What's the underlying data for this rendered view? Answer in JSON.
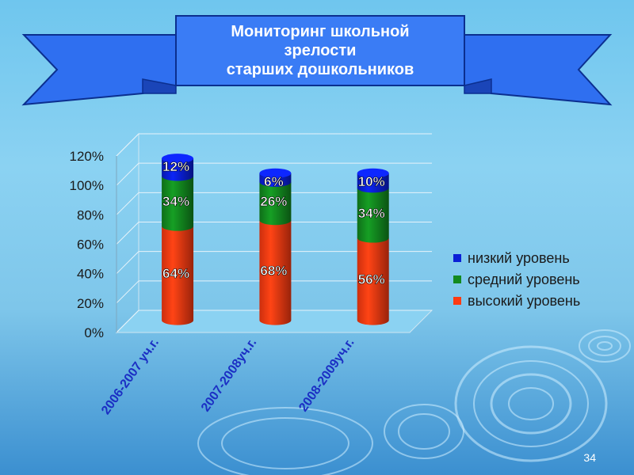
{
  "slide": {
    "title_lines": [
      "Мониторинг школьной",
      "зрелости",
      "старших дошкольников"
    ],
    "page_number": "34"
  },
  "colors": {
    "high": "#ff3b12",
    "medium": "#138a1f",
    "low": "#0a1fd6",
    "ribbon": "#2f6ff0",
    "text": "#ffffff",
    "axis_text": "#1a1a1a"
  },
  "chart_data": {
    "type": "bar",
    "stacked": true,
    "style": "3d-cylinder",
    "categories": [
      "2006-2007 уч.г.",
      "2007-2008уч.г.",
      "2008-2009уч.г."
    ],
    "series": [
      {
        "name": "высокий уровень",
        "values": [
          64,
          68,
          56
        ],
        "labels": [
          "64%",
          "68%",
          "56%"
        ],
        "color_key": "high"
      },
      {
        "name": "средний уровень",
        "values": [
          34,
          26,
          34
        ],
        "labels": [
          "34%",
          "26%",
          "34%"
        ],
        "color_key": "medium"
      },
      {
        "name": "низкий уровень",
        "values": [
          12,
          6,
          10
        ],
        "labels": [
          "12%",
          "6%",
          "10%"
        ],
        "color_key": "low"
      }
    ],
    "legend": [
      "низкий уровень",
      "средний уровень",
      "высокий уровень"
    ],
    "legend_placement": "right",
    "y_ticks": [
      "0%",
      "20%",
      "40%",
      "60%",
      "80%",
      "100%",
      "120%"
    ],
    "ylim": [
      0,
      120
    ],
    "grid": true
  }
}
